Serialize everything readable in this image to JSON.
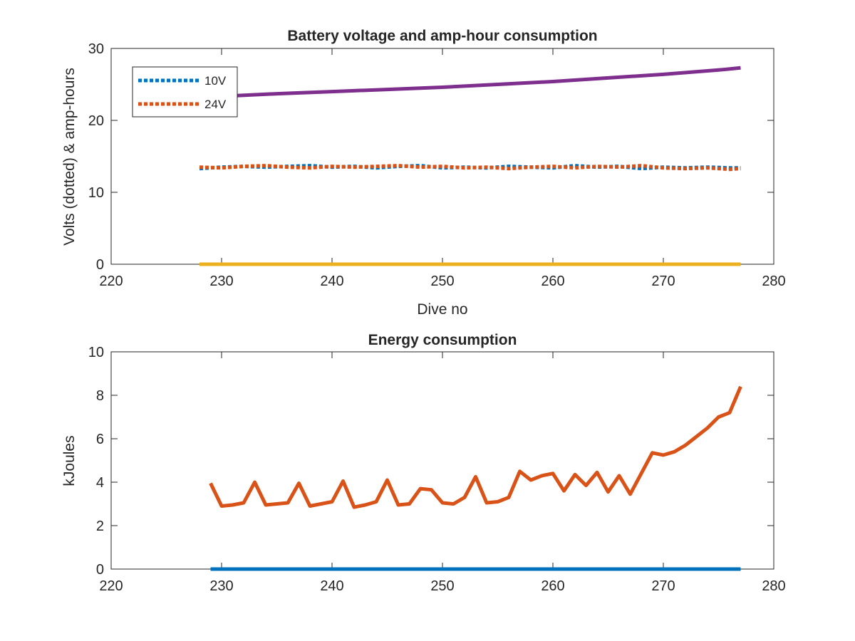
{
  "chart_data": [
    {
      "type": "line",
      "title": "Battery voltage and amp-hour consumption",
      "xlabel": "Dive no",
      "ylabel": "Volts (dotted) & amp-hours",
      "xlim": [
        220,
        280
      ],
      "ylim": [
        0,
        30
      ],
      "xticks": [
        "220",
        "230",
        "240",
        "250",
        "260",
        "270",
        "280"
      ],
      "yticks": [
        "0",
        "10",
        "20",
        "30"
      ],
      "legend_placement": "top-left",
      "series": [
        {
          "name": "10V",
          "style": "dotted",
          "color": "#0072BD",
          "x": [
            228,
            230,
            232,
            234,
            236,
            238,
            240,
            242,
            244,
            246,
            248,
            250,
            252,
            254,
            256,
            258,
            260,
            262,
            264,
            266,
            268,
            270,
            272,
            274,
            276,
            277
          ],
          "values": [
            13.3,
            13.5,
            13.6,
            13.5,
            13.6,
            13.7,
            13.5,
            13.6,
            13.4,
            13.6,
            13.7,
            13.4,
            13.5,
            13.4,
            13.6,
            13.5,
            13.4,
            13.7,
            13.5,
            13.6,
            13.3,
            13.5,
            13.4,
            13.5,
            13.4,
            13.4
          ]
        },
        {
          "name": "24V",
          "style": "dotted",
          "color": "#D95319",
          "x": [
            228,
            230,
            232,
            234,
            236,
            238,
            240,
            242,
            244,
            246,
            248,
            250,
            252,
            254,
            256,
            258,
            260,
            262,
            264,
            266,
            268,
            270,
            272,
            274,
            276,
            277
          ],
          "values": [
            13.5,
            13.4,
            13.6,
            13.7,
            13.5,
            13.4,
            13.6,
            13.5,
            13.6,
            13.7,
            13.5,
            13.6,
            13.4,
            13.5,
            13.3,
            13.5,
            13.6,
            13.4,
            13.6,
            13.5,
            13.7,
            13.4,
            13.3,
            13.4,
            13.2,
            13.3
          ]
        },
        {
          "style": "solid",
          "color": "#7E2F8E",
          "x": [
            228,
            235,
            240,
            245,
            250,
            255,
            260,
            265,
            270,
            275,
            277
          ],
          "values": [
            23.2,
            23.7,
            24.0,
            24.3,
            24.6,
            25.0,
            25.4,
            25.9,
            26.4,
            27.0,
            27.3
          ]
        },
        {
          "style": "solid",
          "color": "#EDB120",
          "x": [
            228,
            277
          ],
          "values": [
            0,
            0
          ]
        }
      ]
    },
    {
      "type": "line",
      "title": "Energy consumption",
      "xlabel": "",
      "ylabel": "kJoules",
      "xlim": [
        220,
        280
      ],
      "ylim": [
        0,
        10
      ],
      "xticks": [
        "220",
        "230",
        "240",
        "250",
        "260",
        "270",
        "280"
      ],
      "yticks": [
        "0",
        "2",
        "4",
        "6",
        "8",
        "10"
      ],
      "series": [
        {
          "color": "#D95319",
          "x": [
            229,
            230,
            231,
            232,
            233,
            234,
            235,
            236,
            237,
            238,
            239,
            240,
            241,
            242,
            243,
            244,
            245,
            246,
            247,
            248,
            249,
            250,
            251,
            252,
            253,
            254,
            255,
            256,
            257,
            258,
            259,
            260,
            261,
            262,
            263,
            264,
            265,
            266,
            267,
            268,
            269,
            270,
            271,
            272,
            273,
            274,
            275,
            276,
            277
          ],
          "values": [
            3.95,
            2.9,
            2.95,
            3.05,
            4.0,
            2.95,
            3.0,
            3.05,
            3.95,
            2.9,
            3.0,
            3.1,
            4.05,
            2.85,
            2.95,
            3.1,
            4.1,
            2.95,
            3.0,
            3.7,
            3.65,
            3.05,
            3.0,
            3.3,
            4.25,
            3.05,
            3.1,
            3.3,
            4.5,
            4.1,
            4.3,
            4.4,
            3.6,
            4.35,
            3.85,
            4.45,
            3.55,
            4.3,
            3.45,
            4.4,
            5.35,
            5.25,
            5.4,
            5.7,
            6.1,
            6.5,
            7.0,
            7.2,
            8.4
          ]
        },
        {
          "color": "#0072BD",
          "x": [
            229,
            277
          ],
          "values": [
            0,
            0
          ]
        }
      ]
    }
  ]
}
